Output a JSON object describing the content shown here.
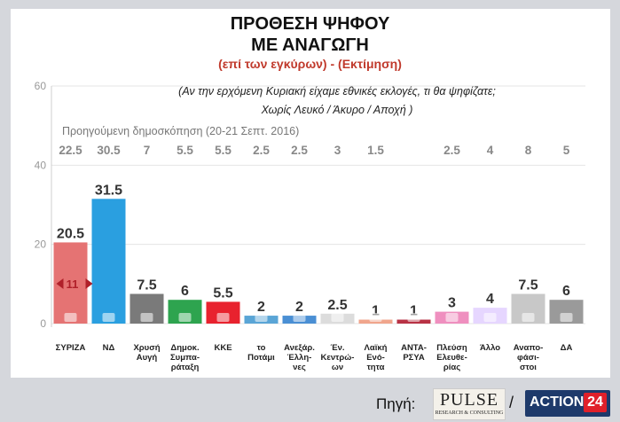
{
  "title_line1": "ΠΡΟΘΕΣΗ ΨΗΦΟΥ",
  "title_line2": "ΜΕ ΑΝΑΓΩΓΗ",
  "subtitle": "(επί των εγκύρων) - (Εκτίμηση)",
  "question_line1": "(Αν την ερχόμενη Κυριακή είχαμε εθνικές εκλογές, τι θα ψηφίζατε;",
  "question_line2": "Χωρίς Λευκό / Άκυρο / Αποχή )",
  "previous_poll_label": "Προηγούμενη δημοσκόπηση (20-21 Σεπτ. 2016)",
  "gap_annotation": "11",
  "footer": {
    "source_label": "Πηγή:",
    "separator": "/",
    "pulse_logo_text": "PULSE",
    "pulse_logo_sub": "RESEARCH & CONSULTING",
    "action_logo_text": "ACTION",
    "action_logo_num": "24"
  },
  "colors": {
    "syriza": "#e57373",
    "nd": "#2a9fe0",
    "golden_dawn": "#7a7a7a",
    "dimar": "#2ea44f",
    "kke": "#e8222e",
    "potami": "#5aa5d6",
    "anel": "#4a8fd4",
    "centrists": "#dcdcdc",
    "laos": "#f0a58c",
    "antarsya": "#b83244",
    "plefsi": "#ef8fbf",
    "other": "#e6d6ff",
    "undecided": "#c8c8c8",
    "da": "#9a9a9a",
    "value_label": "#333333",
    "prev_value": "#888888",
    "arrow": "#b0202a"
  },
  "chart_data": {
    "type": "bar",
    "title": "ΠΡΟΘΕΣΗ ΨΗΦΟΥ ΜΕ ΑΝΑΓΩΓΗ",
    "subtitle": "(επί των εγκύρων) - (Εκτίμηση)",
    "ylim": [
      0,
      60
    ],
    "yticks": [
      0,
      20,
      40,
      60
    ],
    "grid": true,
    "categories": [
      [
        "ΣΥΡΙΖΑ"
      ],
      [
        "ΝΔ"
      ],
      [
        "Χρυσή",
        "Αυγή"
      ],
      [
        "Δημοκ.",
        "Συμπα-",
        "ράταξη"
      ],
      [
        "ΚΚΕ"
      ],
      [
        "το",
        "Ποτάμι"
      ],
      [
        "Ανεξάρ.",
        "Έλλη-",
        "νες"
      ],
      [
        "Έν.",
        "Κεντρώ-",
        "ων"
      ],
      [
        "Λαϊκή",
        "Ενό-",
        "τητα"
      ],
      [
        "ΑΝΤΑ-",
        "ΡΣΥΑ"
      ],
      [
        "Πλεύση",
        "Ελευθε-",
        "ρίας"
      ],
      [
        "Άλλο"
      ],
      [
        "Αναπο-",
        "φάσι-",
        "στοι"
      ],
      [
        "ΔΑ"
      ]
    ],
    "values": [
      20.5,
      31.5,
      7.5,
      6,
      5.5,
      2,
      2,
      2.5,
      1,
      1,
      3,
      4,
      7.5,
      6
    ],
    "value_labels": [
      "20.5",
      "31.5",
      "7.5",
      "6",
      "5.5",
      "2",
      "2",
      "2.5",
      "1",
      "1",
      "3",
      "4",
      "7.5",
      "6"
    ],
    "previous_values": [
      "22.5",
      "30.5",
      "7",
      "5.5",
      "5.5",
      "2.5",
      "2.5",
      "3",
      "1.5",
      "",
      "2.5",
      "4",
      "8",
      "5"
    ],
    "series_color_keys": [
      "syriza",
      "nd",
      "golden_dawn",
      "dimar",
      "kke",
      "potami",
      "anel",
      "centrists",
      "laos",
      "antarsya",
      "plefsi",
      "other",
      "undecided",
      "da"
    ]
  }
}
